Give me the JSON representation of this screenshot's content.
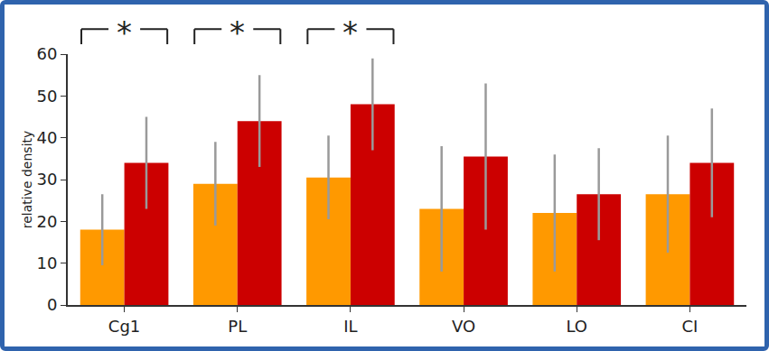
{
  "chart_data": {
    "type": "bar",
    "y_label": "relative density",
    "categories": [
      "Cg1",
      "PL",
      "IL",
      "VO",
      "LO",
      "CI"
    ],
    "series": [
      {
        "color": "#ff9900",
        "values": [
          18,
          29,
          30.5,
          23,
          22,
          26.5
        ],
        "errors": [
          8.5,
          10,
          10,
          15,
          14,
          14
        ]
      },
      {
        "color": "#cc0000",
        "values": [
          34,
          44,
          48,
          35.5,
          26.5,
          34
        ],
        "errors": [
          11,
          11,
          11,
          17.5,
          11,
          13
        ]
      }
    ],
    "annotations": [
      {
        "text": "*",
        "category": "Cg1"
      },
      {
        "text": "*",
        "category": "PL"
      },
      {
        "text": "*",
        "category": "IL"
      }
    ],
    "ylim": [
      0,
      60
    ],
    "yticks": [
      0,
      10,
      20,
      30,
      40,
      50,
      60
    ],
    "grid": false
  }
}
